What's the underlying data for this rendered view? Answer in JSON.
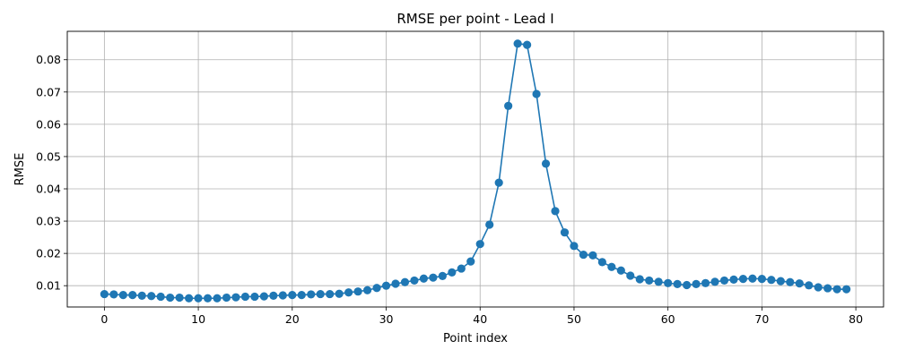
{
  "chart_data": {
    "type": "line",
    "title": "RMSE per point - Lead I",
    "xlabel": "Point index",
    "ylabel": "RMSE",
    "xlim": [
      -3.95,
      82.95
    ],
    "ylim": [
      0.0034,
      0.0888
    ],
    "xticks": [
      0,
      10,
      20,
      30,
      40,
      50,
      60,
      70,
      80
    ],
    "yticks": [
      0.01,
      0.02,
      0.03,
      0.04,
      0.05,
      0.06,
      0.07,
      0.08
    ],
    "ytick_labels": [
      "0.01",
      "0.02",
      "0.03",
      "0.04",
      "0.05",
      "0.06",
      "0.07",
      "0.08"
    ],
    "grid": true,
    "marker": "circle",
    "color": "#1f77b4",
    "x": [
      0,
      1,
      2,
      3,
      4,
      5,
      6,
      7,
      8,
      9,
      10,
      11,
      12,
      13,
      14,
      15,
      16,
      17,
      18,
      19,
      20,
      21,
      22,
      23,
      24,
      25,
      26,
      27,
      28,
      29,
      30,
      31,
      32,
      33,
      34,
      35,
      36,
      37,
      38,
      39,
      40,
      41,
      42,
      43,
      44,
      45,
      46,
      47,
      48,
      49,
      50,
      51,
      52,
      53,
      54,
      55,
      56,
      57,
      58,
      59,
      60,
      61,
      62,
      63,
      64,
      65,
      66,
      67,
      68,
      69,
      70,
      71,
      72,
      73,
      74,
      75,
      76,
      77,
      78,
      79
    ],
    "y": [
      0.0074,
      0.0073,
      0.0071,
      0.0071,
      0.0069,
      0.0068,
      0.0066,
      0.0063,
      0.0063,
      0.0061,
      0.0061,
      0.0061,
      0.0061,
      0.0063,
      0.0064,
      0.0066,
      0.0066,
      0.0067,
      0.0069,
      0.007,
      0.0071,
      0.0071,
      0.0073,
      0.0074,
      0.0074,
      0.0075,
      0.0079,
      0.0082,
      0.0086,
      0.0093,
      0.01,
      0.0106,
      0.0111,
      0.0116,
      0.0122,
      0.0125,
      0.013,
      0.0141,
      0.0153,
      0.0175,
      0.0229,
      0.0289,
      0.0419,
      0.0657,
      0.085,
      0.0846,
      0.0694,
      0.0478,
      0.0331,
      0.0265,
      0.0223,
      0.0196,
      0.0194,
      0.0173,
      0.0158,
      0.0147,
      0.0131,
      0.012,
      0.0116,
      0.0112,
      0.0108,
      0.0105,
      0.0102,
      0.0105,
      0.0108,
      0.0112,
      0.0116,
      0.0119,
      0.0121,
      0.0122,
      0.0121,
      0.0118,
      0.0114,
      0.0111,
      0.0107,
      0.0101,
      0.0095,
      0.0092,
      0.0089,
      0.0089
    ]
  }
}
